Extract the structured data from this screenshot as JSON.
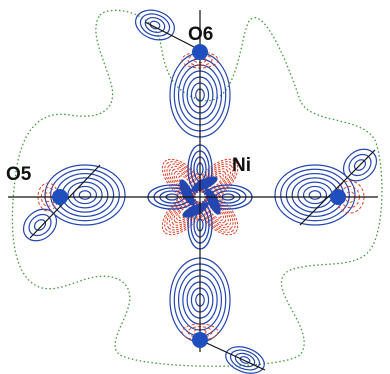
{
  "labels": {
    "o6": "O6",
    "ni": "Ni",
    "o5": "O5"
  }
}
